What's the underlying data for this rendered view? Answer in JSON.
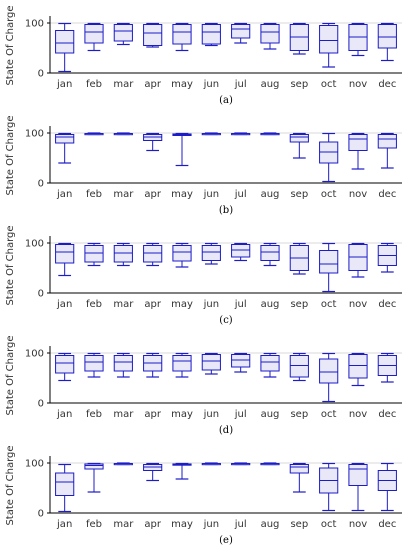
{
  "colors": {
    "box": "#1c1cc8",
    "fill": "#e8e8f8",
    "axis": "#000000",
    "grid": "#d8d8d8"
  },
  "chart_data": [
    {
      "type": "box",
      "caption": "(a)",
      "ylabel": "State Of Charge",
      "ylim": [
        0,
        110
      ],
      "yticks": [
        0,
        100
      ],
      "categories": [
        "jan",
        "feb",
        "mar",
        "apr",
        "may",
        "jun",
        "jul",
        "aug",
        "sep",
        "oct",
        "nov",
        "dec"
      ],
      "series": [
        {
          "min": 3,
          "q1": 40,
          "median": 60,
          "q3": 85,
          "max": 99
        },
        {
          "min": 45,
          "q1": 60,
          "median": 82,
          "q3": 97,
          "max": 99
        },
        {
          "min": 57,
          "q1": 64,
          "median": 84,
          "q3": 97,
          "max": 99
        },
        {
          "min": 52,
          "q1": 55,
          "median": 80,
          "q3": 97,
          "max": 99
        },
        {
          "min": 45,
          "q1": 58,
          "median": 82,
          "q3": 97,
          "max": 99
        },
        {
          "min": 55,
          "q1": 58,
          "median": 82,
          "q3": 97,
          "max": 99
        },
        {
          "min": 60,
          "q1": 70,
          "median": 88,
          "q3": 97,
          "max": 99
        },
        {
          "min": 48,
          "q1": 60,
          "median": 82,
          "q3": 97,
          "max": 99
        },
        {
          "min": 38,
          "q1": 45,
          "median": 72,
          "q3": 97,
          "max": 99
        },
        {
          "min": 12,
          "q1": 40,
          "median": 65,
          "q3": 95,
          "max": 99
        },
        {
          "min": 35,
          "q1": 45,
          "median": 72,
          "q3": 97,
          "max": 99
        },
        {
          "min": 25,
          "q1": 50,
          "median": 72,
          "q3": 97,
          "max": 99
        }
      ]
    },
    {
      "type": "box",
      "caption": "(b)",
      "ylabel": "State Of Charge",
      "ylim": [
        0,
        110
      ],
      "yticks": [
        0,
        100
      ],
      "categories": [
        "jan",
        "feb",
        "mar",
        "apr",
        "may",
        "jun",
        "jul",
        "aug",
        "sep",
        "oct",
        "nov",
        "dec"
      ],
      "series": [
        {
          "min": 40,
          "q1": 80,
          "median": 92,
          "q3": 97,
          "max": 99
        },
        {
          "min": 97,
          "q1": 98,
          "median": 99,
          "q3": 99,
          "max": 100
        },
        {
          "min": 97,
          "q1": 98,
          "median": 99,
          "q3": 99,
          "max": 100
        },
        {
          "min": 65,
          "q1": 85,
          "median": 92,
          "q3": 97,
          "max": 99
        },
        {
          "min": 35,
          "q1": 95,
          "median": 97,
          "q3": 98,
          "max": 99
        },
        {
          "min": 97,
          "q1": 98,
          "median": 99,
          "q3": 99,
          "max": 100
        },
        {
          "min": 97,
          "q1": 98,
          "median": 99,
          "q3": 99,
          "max": 100
        },
        {
          "min": 97,
          "q1": 98,
          "median": 99,
          "q3": 99,
          "max": 100
        },
        {
          "min": 50,
          "q1": 82,
          "median": 92,
          "q3": 97,
          "max": 99
        },
        {
          "min": 3,
          "q1": 40,
          "median": 62,
          "q3": 82,
          "max": 99
        },
        {
          "min": 28,
          "q1": 65,
          "median": 88,
          "q3": 97,
          "max": 99
        },
        {
          "min": 30,
          "q1": 70,
          "median": 88,
          "q3": 97,
          "max": 99
        }
      ]
    },
    {
      "type": "box",
      "caption": "(c)",
      "ylabel": "State Of Charge",
      "ylim": [
        0,
        110
      ],
      "yticks": [
        0,
        100
      ],
      "categories": [
        "jan",
        "feb",
        "mar",
        "apr",
        "may",
        "jun",
        "jul",
        "aug",
        "sep",
        "oct",
        "nov",
        "dec"
      ],
      "series": [
        {
          "min": 35,
          "q1": 60,
          "median": 82,
          "q3": 97,
          "max": 99
        },
        {
          "min": 55,
          "q1": 62,
          "median": 80,
          "q3": 95,
          "max": 99
        },
        {
          "min": 55,
          "q1": 62,
          "median": 80,
          "q3": 95,
          "max": 99
        },
        {
          "min": 55,
          "q1": 62,
          "median": 80,
          "q3": 95,
          "max": 99
        },
        {
          "min": 52,
          "q1": 64,
          "median": 82,
          "q3": 95,
          "max": 99
        },
        {
          "min": 58,
          "q1": 65,
          "median": 82,
          "q3": 95,
          "max": 99
        },
        {
          "min": 65,
          "q1": 72,
          "median": 86,
          "q3": 97,
          "max": 99
        },
        {
          "min": 55,
          "q1": 65,
          "median": 82,
          "q3": 95,
          "max": 99
        },
        {
          "min": 38,
          "q1": 45,
          "median": 70,
          "q3": 95,
          "max": 99
        },
        {
          "min": 3,
          "q1": 40,
          "median": 58,
          "q3": 85,
          "max": 99
        },
        {
          "min": 32,
          "q1": 45,
          "median": 72,
          "q3": 97,
          "max": 99
        },
        {
          "min": 42,
          "q1": 55,
          "median": 75,
          "q3": 95,
          "max": 99
        }
      ]
    },
    {
      "type": "box",
      "caption": "(d)",
      "ylabel": "State Of Charge",
      "ylim": [
        0,
        110
      ],
      "yticks": [
        0,
        100
      ],
      "categories": [
        "jan",
        "feb",
        "mar",
        "apr",
        "may",
        "jun",
        "jul",
        "aug",
        "sep",
        "oct",
        "nov",
        "dec"
      ],
      "series": [
        {
          "min": 45,
          "q1": 60,
          "median": 80,
          "q3": 95,
          "max": 99
        },
        {
          "min": 52,
          "q1": 64,
          "median": 82,
          "q3": 95,
          "max": 99
        },
        {
          "min": 52,
          "q1": 64,
          "median": 82,
          "q3": 95,
          "max": 99
        },
        {
          "min": 52,
          "q1": 64,
          "median": 80,
          "q3": 95,
          "max": 99
        },
        {
          "min": 52,
          "q1": 64,
          "median": 84,
          "q3": 95,
          "max": 99
        },
        {
          "min": 58,
          "q1": 66,
          "median": 84,
          "q3": 97,
          "max": 99
        },
        {
          "min": 62,
          "q1": 72,
          "median": 86,
          "q3": 97,
          "max": 99
        },
        {
          "min": 52,
          "q1": 64,
          "median": 82,
          "q3": 95,
          "max": 99
        },
        {
          "min": 45,
          "q1": 52,
          "median": 75,
          "q3": 95,
          "max": 99
        },
        {
          "min": 3,
          "q1": 40,
          "median": 62,
          "q3": 88,
          "max": 99
        },
        {
          "min": 35,
          "q1": 50,
          "median": 75,
          "q3": 97,
          "max": 99
        },
        {
          "min": 42,
          "q1": 55,
          "median": 75,
          "q3": 95,
          "max": 99
        }
      ]
    },
    {
      "type": "box",
      "caption": "(e)",
      "ylabel": "State Of Charge",
      "ylim": [
        0,
        110
      ],
      "yticks": [
        0,
        100
      ],
      "categories": [
        "jan",
        "feb",
        "mar",
        "apr",
        "may",
        "jun",
        "jul",
        "aug",
        "sep",
        "oct",
        "nov",
        "dec"
      ],
      "series": [
        {
          "min": 3,
          "q1": 35,
          "median": 62,
          "q3": 80,
          "max": 97
        },
        {
          "min": 42,
          "q1": 88,
          "median": 95,
          "q3": 98,
          "max": 99
        },
        {
          "min": 97,
          "q1": 98,
          "median": 99,
          "q3": 99,
          "max": 100
        },
        {
          "min": 65,
          "q1": 85,
          "median": 92,
          "q3": 97,
          "max": 99
        },
        {
          "min": 68,
          "q1": 96,
          "median": 97,
          "q3": 98,
          "max": 99
        },
        {
          "min": 97,
          "q1": 98,
          "median": 99,
          "q3": 99,
          "max": 100
        },
        {
          "min": 97,
          "q1": 98,
          "median": 99,
          "q3": 99,
          "max": 100
        },
        {
          "min": 97,
          "q1": 98,
          "median": 99,
          "q3": 99,
          "max": 100
        },
        {
          "min": 42,
          "q1": 80,
          "median": 92,
          "q3": 97,
          "max": 99
        },
        {
          "min": 5,
          "q1": 40,
          "median": 65,
          "q3": 90,
          "max": 99
        },
        {
          "min": 5,
          "q1": 55,
          "median": 88,
          "q3": 97,
          "max": 99
        },
        {
          "min": 5,
          "q1": 45,
          "median": 65,
          "q3": 85,
          "max": 99
        }
      ]
    }
  ]
}
